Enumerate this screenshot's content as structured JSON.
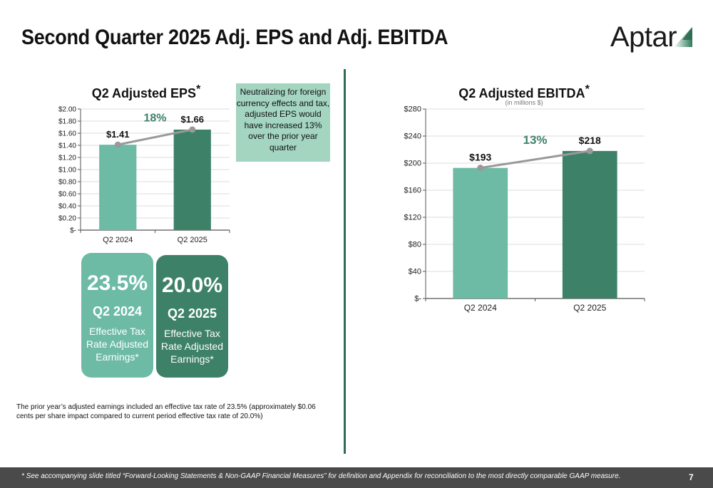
{
  "slide": {
    "title": "Second Quarter 2025 Adj. EPS and Adj. EBITDA",
    "logo_text": "Aptar",
    "page_number": "7",
    "footer_note": "* See accompanying slide titled “Forward-Looking Statements & Non-GAAP Financial Measures” for definition and Appendix for reconciliation to the most directly comparable GAAP measure.",
    "tax_footnote": "The prior year’s adjusted earnings included an effective tax rate of 23.5% (approximately $0.06 cents per share impact compared to current period effective tax rate of 20.0%)",
    "callout": "Neutralizing for foreign currency effects and tax, adjusted EPS would have increased 13% over the prior year quarter",
    "colors": {
      "light_green": "#6dbba5",
      "dark_green": "#3e8169",
      "callout_bg": "#a3d5c1",
      "growth_text": "#3e8169",
      "line_gray": "#999999",
      "footer_bg": "#4a4a4a"
    }
  },
  "tax_cards": [
    {
      "rate": "23.5%",
      "period": "Q2 2024",
      "description": "Effective Tax Rate Adjusted Earnings*"
    },
    {
      "rate": "20.0%",
      "period": "Q2 2025",
      "description": "Effective Tax Rate Adjusted Earnings*"
    }
  ],
  "chart_data": [
    {
      "type": "bar",
      "title": "Q2 Adjusted EPS",
      "title_marker": "*",
      "subtitle": "",
      "categories": [
        "Q2 2024",
        "Q2 2025"
      ],
      "values": [
        1.41,
        1.66
      ],
      "data_labels": [
        "$1.41",
        "$1.66"
      ],
      "growth_label": "18%",
      "ylim": [
        0,
        2.0
      ],
      "yticks": [
        0,
        0.2,
        0.4,
        0.6,
        0.8,
        1.0,
        1.2,
        1.4,
        1.6,
        1.8,
        2.0
      ],
      "ytick_labels": [
        "$-",
        "$0.20",
        "$0.40",
        "$0.60",
        "$0.80",
        "$1.00",
        "$1.20",
        "$1.40",
        "$1.60",
        "$1.80",
        "$2.00"
      ],
      "xlabel": "",
      "ylabel": "",
      "grid": true,
      "legend": "none",
      "overlay_line": "connects bar tops"
    },
    {
      "type": "bar",
      "title": "Q2 Adjusted EBITDA",
      "title_marker": "*",
      "subtitle": "(in millions $)",
      "categories": [
        "Q2 2024",
        "Q2 2025"
      ],
      "values": [
        193,
        218
      ],
      "data_labels": [
        "$193",
        "$218"
      ],
      "growth_label": "13%",
      "ylim": [
        0,
        280
      ],
      "yticks": [
        0,
        40,
        80,
        120,
        160,
        200,
        240,
        280
      ],
      "ytick_labels": [
        "$-",
        "$40",
        "$80",
        "$120",
        "$160",
        "$200",
        "$240",
        "$280"
      ],
      "xlabel": "",
      "ylabel": "",
      "grid": true,
      "legend": "none",
      "overlay_line": "connects bar tops"
    }
  ]
}
